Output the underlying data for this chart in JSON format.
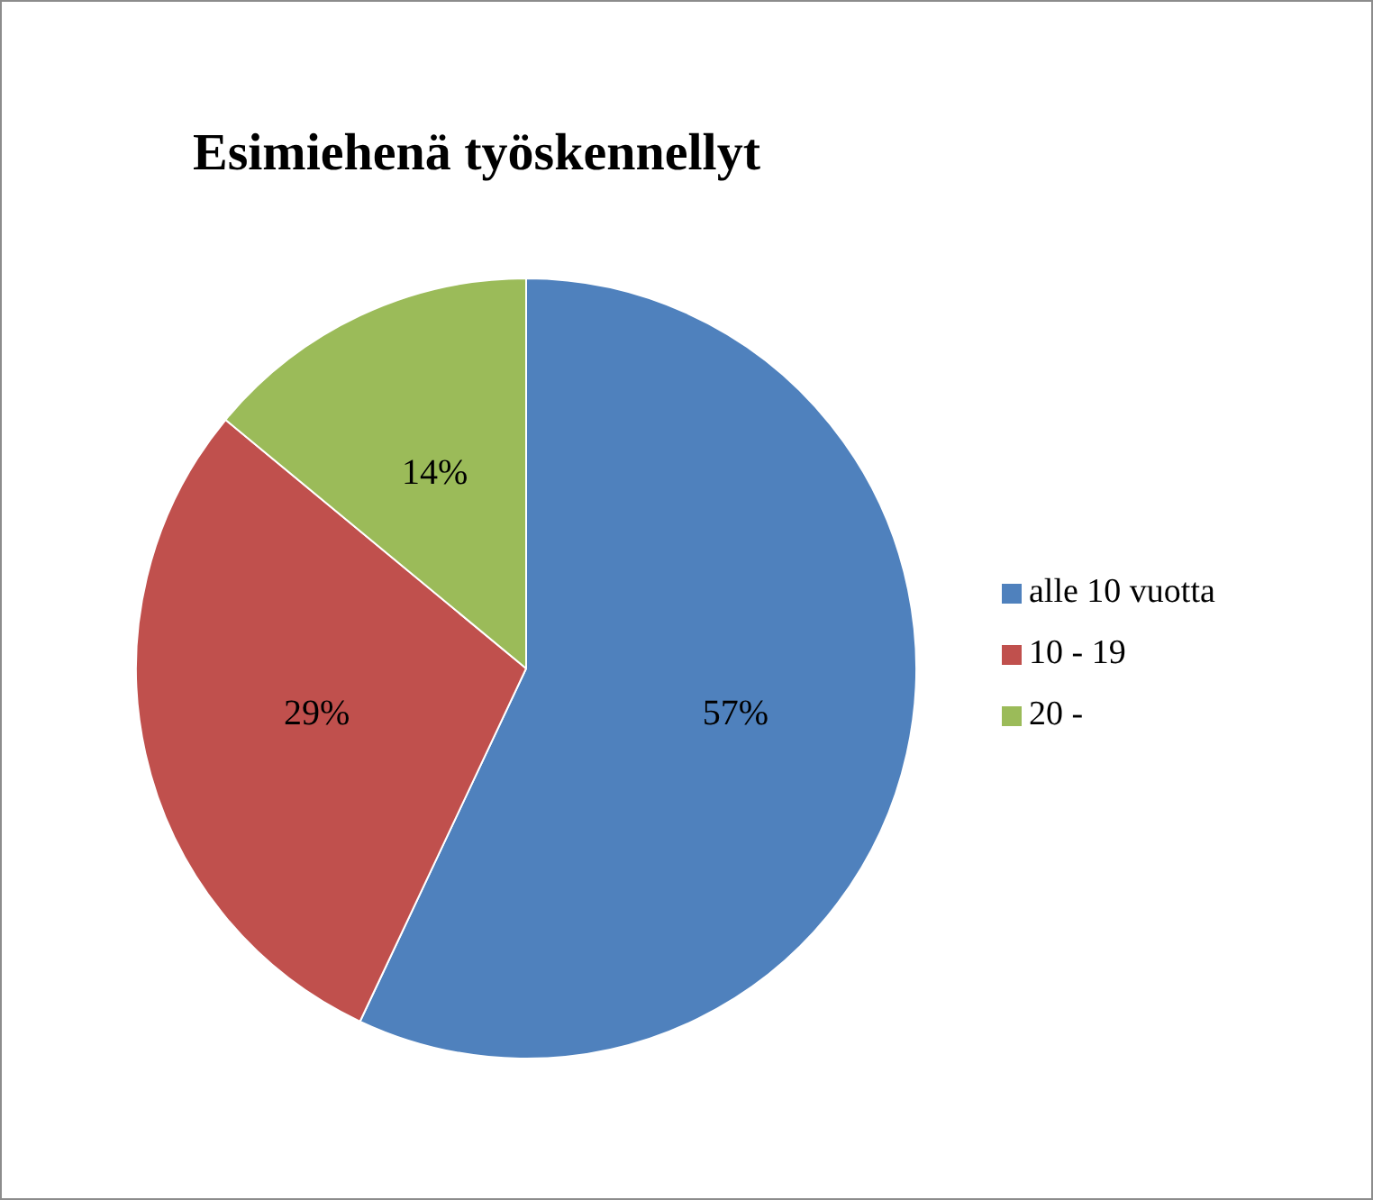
{
  "chart_data": {
    "type": "pie",
    "title": "Esimiehenä työskennellyt",
    "categories": [
      "alle 10 vuotta",
      "10 - 19",
      "20 -"
    ],
    "values": [
      57,
      29,
      14
    ],
    "colors": [
      "#4f81bd",
      "#c0504d",
      "#9bbb59"
    ],
    "value_labels": [
      "57%",
      "29%",
      "14%"
    ],
    "legend": "right"
  }
}
